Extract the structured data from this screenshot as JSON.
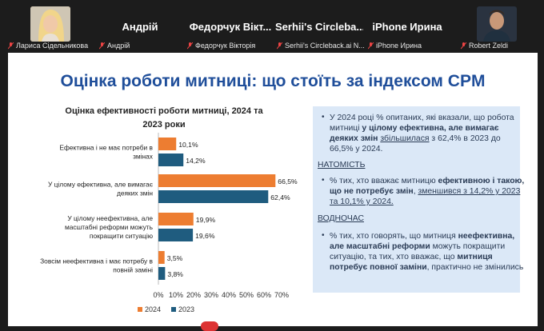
{
  "meeting": {
    "participants": [
      {
        "label": "Лариса Сідельникова",
        "name": "",
        "photo": true
      },
      {
        "label": "Андрій",
        "name": "Андрій",
        "photo": false
      },
      {
        "label": "Федорчук Вікторія",
        "name": "Федорчук Вікт...",
        "photo": false
      },
      {
        "label": "Serhii's Circleback.ai N...",
        "name": "Serhii's Circleba...",
        "photo": false
      },
      {
        "label": "iPhone Ирина",
        "name": "iPhone Ирина",
        "photo": false
      },
      {
        "label": "Robert Zeldi",
        "name": "",
        "photo": true
      }
    ]
  },
  "slide": {
    "title": "Оцінка роботи митниці: що стоїть за індексом CPM",
    "panel": {
      "b1_p1": "У 2024 році % опитаних, які вказали, що робота митниці ",
      "b1_b1": "у цілому ефективна, але вимагає деяких змін",
      "b1_p2": " ",
      "b1_u1": "збільшилася",
      "b1_p3": " з 62,4% в 2023 до 66,5% у 2024.",
      "h1": "НАТОМІСТЬ",
      "b2_p1": "% тих, хто вважає митницю ",
      "b2_b1": "ефективною і такою, що не потребує змін",
      "b2_p2": ", ",
      "b2_u1": "зменшився з 14,2% у 2023 та 10,1% у 2024.",
      "h2": "ВОДНОЧАС",
      "b3_p1": "% тих, хто говорять, що митниця ",
      "b3_b1": "неефективна, але масштабні реформи",
      "b3_p2": " можуть покращити ситуацію, та тих, хто вважає, що ",
      "b3_b2": "митниця потребує повної заміни",
      "b3_p3": ", практично не змінились"
    }
  },
  "chart_data": {
    "type": "bar",
    "orientation": "horizontal",
    "title_line1": "Оцінка ефективності роботи митниці, 2024 та",
    "title_line2": "2023 роки",
    "categories": [
      [
        "Ефективна і не має потреби в",
        "змінах"
      ],
      [
        "У цілому ефективна, але вимагає",
        "деяких змін"
      ],
      [
        "У цілому неефективна, але",
        "масштабні реформи можуть",
        "покращити ситуацію"
      ],
      [
        "Зовсім неефективна і має потребу в",
        "повній заміні"
      ]
    ],
    "series": [
      {
        "name": "2024",
        "color": "#ed7d31",
        "values": [
          10.1,
          66.5,
          19.9,
          3.5
        ],
        "labels": [
          "10,1%",
          "66,5%",
          "19,9%",
          "3,5%"
        ]
      },
      {
        "name": "2023",
        "color": "#1f5c7f",
        "values": [
          14.2,
          62.4,
          19.6,
          3.8
        ],
        "labels": [
          "14,2%",
          "62,4%",
          "19,6%",
          "3,8%"
        ]
      }
    ],
    "xlim": [
      0,
      70
    ],
    "xticks": [
      "0%",
      "10%",
      "20%",
      "30%",
      "40%",
      "50%",
      "60%",
      "70%"
    ],
    "legend_position": "bottom-left"
  }
}
